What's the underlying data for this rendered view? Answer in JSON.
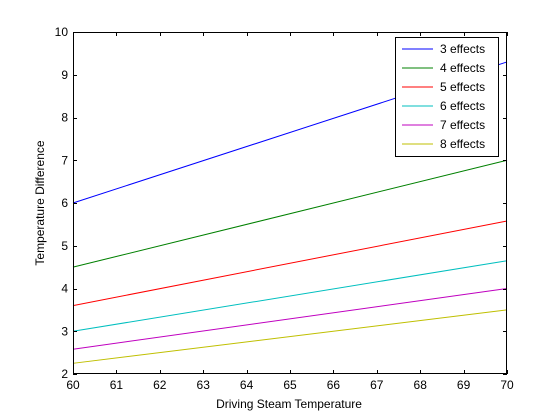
{
  "chart_data": {
    "type": "line",
    "xlabel": "Driving Steam Temperature",
    "ylabel": "Temperature Difference",
    "xlim": [
      60,
      70
    ],
    "ylim": [
      2,
      10
    ],
    "xticks": [
      60,
      61,
      62,
      63,
      64,
      65,
      66,
      67,
      68,
      69,
      70
    ],
    "yticks": [
      2,
      3,
      4,
      5,
      6,
      7,
      8,
      9,
      10
    ],
    "grid": false,
    "legend_position": "top-right",
    "x": [
      60,
      70
    ],
    "series": [
      {
        "name": "3 effects",
        "color": "#0000ff",
        "values": [
          6.0,
          9.3
        ]
      },
      {
        "name": "4 effects",
        "color": "#008000",
        "values": [
          4.5,
          7.0
        ]
      },
      {
        "name": "5 effects",
        "color": "#ff0000",
        "values": [
          3.6,
          5.58
        ]
      },
      {
        "name": "6 effects",
        "color": "#00bfbf",
        "values": [
          3.0,
          4.65
        ]
      },
      {
        "name": "7 effects",
        "color": "#bf00bf",
        "values": [
          2.58,
          4.0
        ]
      },
      {
        "name": "8 effects",
        "color": "#bfbf00",
        "values": [
          2.25,
          3.5
        ]
      }
    ]
  }
}
